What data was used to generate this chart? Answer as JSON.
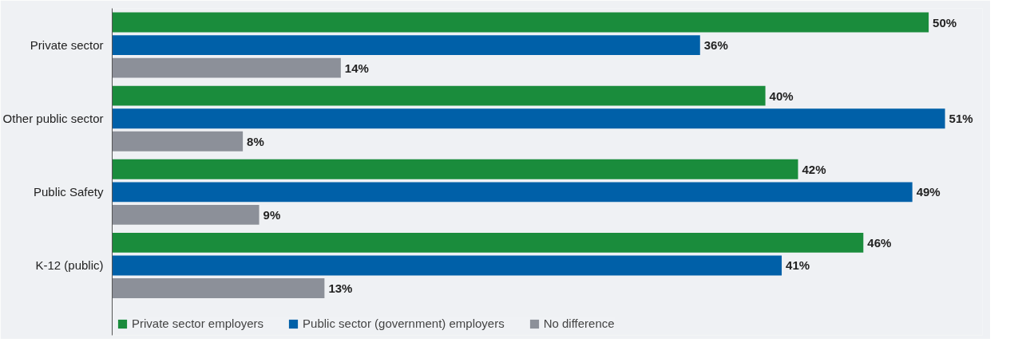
{
  "chart_data": {
    "type": "bar",
    "orientation": "horizontal",
    "categories": [
      "Private sector",
      "Other public sector",
      "Public Safety",
      "K-12 (public)"
    ],
    "series": [
      {
        "name": "Private sector employers",
        "color": "#1a8c3c",
        "values": [
          50,
          40,
          42,
          46
        ],
        "value_labels": [
          "50%",
          "40%",
          "42%",
          "46%"
        ]
      },
      {
        "name": "Public sector (government) employers",
        "color": "#0060a8",
        "values": [
          36,
          51,
          49,
          41
        ],
        "value_labels": [
          "36%",
          "51%",
          "49%",
          "41%"
        ]
      },
      {
        "name": "No difference",
        "color": "#8c9099",
        "values": [
          14,
          8,
          9,
          13
        ],
        "value_labels": [
          "14%",
          "8%",
          "9%",
          "13%"
        ]
      }
    ],
    "legend": "bottom",
    "grid": false
  }
}
